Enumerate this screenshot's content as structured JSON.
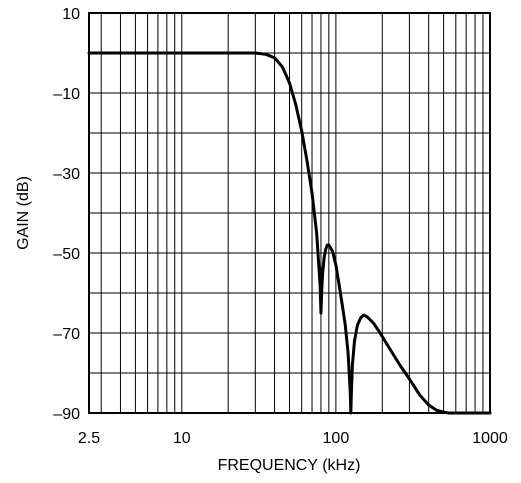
{
  "chart_data": {
    "type": "line",
    "title": "",
    "xlabel": "FREQUENCY (kHz)",
    "ylabel": "GAIN (dB)",
    "x_scale": "log",
    "xlim": [
      2.5,
      1000
    ],
    "ylim": [
      -90,
      10
    ],
    "x_tick_labels": [
      "2.5",
      "10",
      "100",
      "1000"
    ],
    "x_tick_values": [
      2.5,
      10,
      100,
      1000
    ],
    "y_tick_labels": [
      "10",
      "–10",
      "–30",
      "–50",
      "–70",
      "–90"
    ],
    "y_tick_values": [
      10,
      -10,
      -30,
      -50,
      -70,
      -90
    ],
    "y_minor_step": 10,
    "grid": true,
    "legend": "none",
    "series": [
      {
        "color": "#000000",
        "x": [
          2.5,
          10,
          20,
          30,
          35,
          40,
          45,
          50,
          55,
          60,
          65,
          70,
          75,
          79,
          80,
          81,
          82,
          84,
          86,
          88,
          90,
          95,
          100,
          105,
          110,
          115,
          120,
          124,
          125,
          126,
          128,
          132,
          138,
          145,
          152,
          160,
          175,
          190,
          220,
          260,
          300,
          350,
          400,
          450,
          500,
          540,
          570,
          600,
          700,
          800,
          1000
        ],
        "y": [
          0,
          0,
          0,
          0,
          -0.3,
          -1.2,
          -3.5,
          -7.5,
          -13,
          -19.5,
          -27,
          -35,
          -45,
          -58,
          -65,
          -59,
          -55,
          -51,
          -49,
          -48,
          -48,
          -49.5,
          -53,
          -58,
          -63,
          -68,
          -75,
          -85,
          -90,
          -85,
          -78,
          -72,
          -68,
          -66.2,
          -65.5,
          -66,
          -67.5,
          -69.5,
          -73.5,
          -78,
          -81.5,
          -85.5,
          -88,
          -89.3,
          -89.8,
          -90,
          -90,
          -90,
          -90,
          -90,
          -90
        ]
      }
    ]
  }
}
